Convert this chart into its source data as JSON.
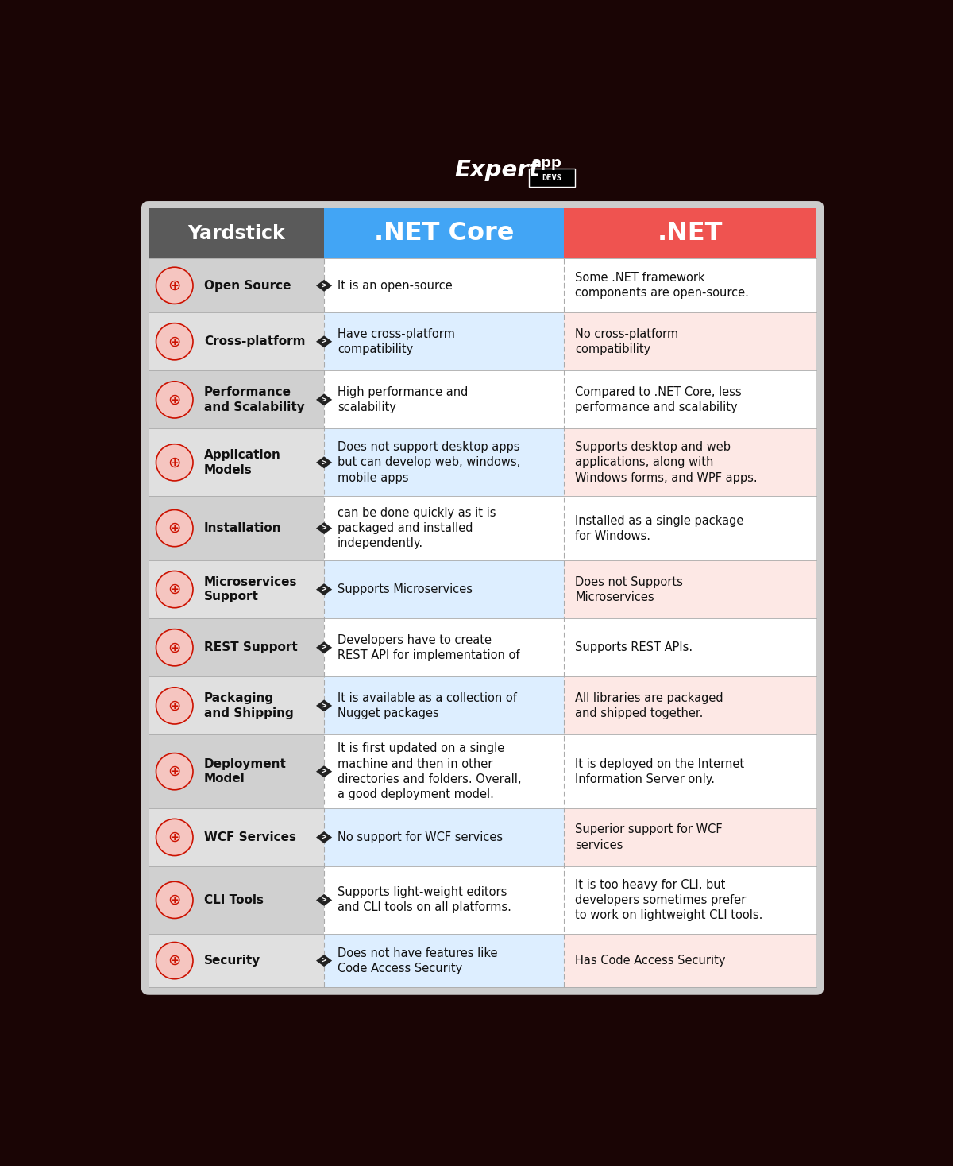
{
  "title_logo_expert": "Expert",
  "title_logo_app": "app",
  "title_logo_devs": "DEVS",
  "header_col1": "Yardstick",
  "header_col2": ".NET Core",
  "header_col3": ".NET",
  "bg_color": "#1a0505",
  "col1_header_bg": "#5a5a5a",
  "col2_header_bg": "#42a5f5",
  "col3_header_bg": "#ef5350",
  "col1_bg_odd": "#d0d0d0",
  "col1_bg_even": "#e0e0e0",
  "col2_bg_odd": "#ffffff",
  "col2_bg_even": "#ddeeff",
  "col3_bg_odd": "#ffffff",
  "col3_bg_even": "#fde8e5",
  "rows": [
    {
      "label": "Open Source",
      "col2": "It is an open-source",
      "col3": "Some .NET framework\ncomponents are open-source.",
      "highlight": false
    },
    {
      "label": "Cross-platform",
      "col2": "Have cross-platform\ncompatibility",
      "col3": "No cross-platform\ncompatibility",
      "highlight": true
    },
    {
      "label": "Performance\nand Scalability",
      "col2": "High performance and\nscalability",
      "col3": "Compared to .NET Core, less\nperformance and scalability",
      "highlight": false
    },
    {
      "label": "Application\nModels",
      "col2": "Does not support desktop apps\nbut can develop web, windows,\nmobile apps",
      "col3": "Supports desktop and web\napplications, along with\nWindows forms, and WPF apps.",
      "highlight": true
    },
    {
      "label": "Installation",
      "col2": "can be done quickly as it is\npackaged and installed\nindependently.",
      "col3": "Installed as a single package\nfor Windows.",
      "highlight": false
    },
    {
      "label": "Microservices\nSupport",
      "col2": "Supports Microservices",
      "col3": "Does not Supports\nMicroservices",
      "highlight": true
    },
    {
      "label": "REST Support",
      "col2": "Developers have to create\nREST API for implementation of",
      "col3": "Supports REST APIs.",
      "highlight": false
    },
    {
      "label": "Packaging\nand Shipping",
      "col2": "It is available as a collection of\nNugget packages",
      "col3": "All libraries are packaged\nand shipped together.",
      "highlight": true
    },
    {
      "label": "Deployment\nModel",
      "col2": "It is first updated on a single\nmachine and then in other\ndirectories and folders. Overall,\na good deployment model.",
      "col3": "It is deployed on the Internet\nInformation Server only.",
      "highlight": false
    },
    {
      "label": "WCF Services",
      "col2": "No support for WCF services",
      "col3": "Superior support for WCF\nservices",
      "highlight": true
    },
    {
      "label": "CLI Tools",
      "col2": "Supports light-weight editors\nand CLI tools on all platforms.",
      "col3": "It is too heavy for CLI, but\ndevelopers sometimes prefer\nto work on lightweight CLI tools.",
      "highlight": false
    },
    {
      "label": "Security",
      "col2": "Does not have features like\nCode Access Security",
      "col3": "Has Code Access Security",
      "highlight": true
    }
  ],
  "icon_color": "#cc1100",
  "text_color_header": "#ffffff",
  "text_color_body": "#111111",
  "row_heights": [
    0.88,
    0.95,
    0.95,
    1.1,
    1.05,
    0.95,
    0.95,
    0.95,
    1.2,
    0.95,
    1.1,
    0.88
  ]
}
